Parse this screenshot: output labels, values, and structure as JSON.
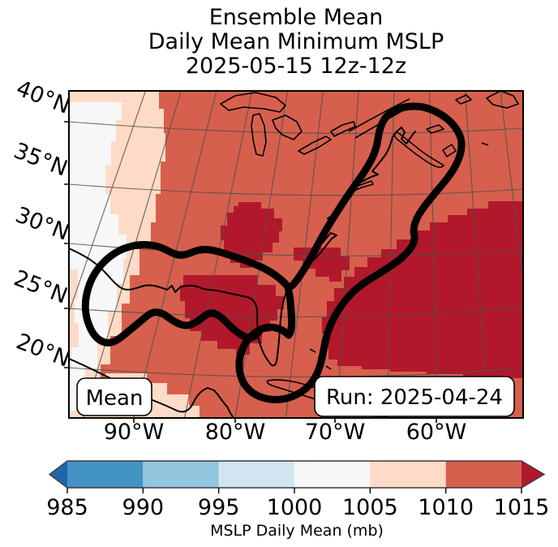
{
  "title": {
    "line1": "Ensemble Mean",
    "line2": "Daily Mean Minimum MSLP",
    "line3": "2025-05-15 12z-12z"
  },
  "map": {
    "annotations": {
      "mean_label": "Mean",
      "run_label": "Run: 2025-04-24"
    },
    "y_axis": {
      "tick_labels": [
        "40°N",
        "35°N",
        "30°N",
        "25°N",
        "20°N"
      ]
    },
    "x_axis": {
      "tick_labels": [
        "90°W",
        "80°W",
        "70°W",
        "60°W"
      ]
    }
  },
  "colorbar": {
    "tick_labels": [
      "985",
      "990",
      "995",
      "1000",
      "1005",
      "1010",
      "1015"
    ],
    "label": "MSLP Daily Mean (mb)"
  },
  "chart_data": {
    "type": "filled_contour_map",
    "title": "Ensemble Mean",
    "subtitle": "Daily Mean Minimum MSLP",
    "valid_period": "2025-05-15 12z-12z",
    "statistic": "Mean",
    "run_date": "Run: 2025-04-24",
    "variable": "MSLP Daily Mean (mb)",
    "region": "Eastern North America, Gulf of Mexico and western Atlantic",
    "graticule": {
      "meridians_deg_w": [
        95,
        90,
        85,
        80,
        75,
        70,
        65,
        60,
        55
      ],
      "parallels_deg_n": [
        20,
        25,
        30,
        35,
        40
      ],
      "labeled_meridians_deg_w": [
        90,
        80,
        70,
        60
      ],
      "labeled_parallels_deg_n": [
        40,
        35,
        30,
        25,
        20
      ]
    },
    "colorbar": {
      "ticks": [
        985,
        990,
        995,
        1000,
        1005,
        1010,
        1015
      ],
      "label": "MSLP Daily Mean (mb)",
      "extend": "both",
      "bins": [
        {
          "range": "< 985",
          "color": "#2166ac"
        },
        {
          "range": "985-990",
          "color": "#4393c3"
        },
        {
          "range": "990-995",
          "color": "#92c5de"
        },
        {
          "range": "995-1000",
          "color": "#d1e5f0"
        },
        {
          "range": "1000-1005",
          "color": "#f7f7f7"
        },
        {
          "range": "1005-1010",
          "color": "#fddbc7"
        },
        {
          "range": "1010-1015",
          "color": "#d6604d"
        },
        {
          "range": "> 1015",
          "color": "#b2182b"
        }
      ]
    },
    "field_summary": [
      {
        "value_range": "1000-1005 mb",
        "region": "narrow strip along far western edge of domain"
      },
      {
        "value_range": "1005-1010 mb",
        "region": "band along western edge and Yucatan / bottom-left area"
      },
      {
        "value_range": "1010-1015 mb",
        "region": "most of domain: eastern U.S., Gulf of Mexico, Canadian Maritimes"
      },
      {
        "value_range": "> 1015 mb",
        "region": "subtropical Atlantic (southeast quadrant), northern Gulf coast near Louisiana-Florida panhandle, inland patch over southern Appalachians"
      }
    ],
    "contour_overlay": "single thick black closed contour outlining a boomerang-shaped region from the western Gulf of Mexico along the U.S. Gulf and East Coasts up to Nova Scotia, pinching near north Florida with a round lobe south of the Florida panhandle"
  }
}
